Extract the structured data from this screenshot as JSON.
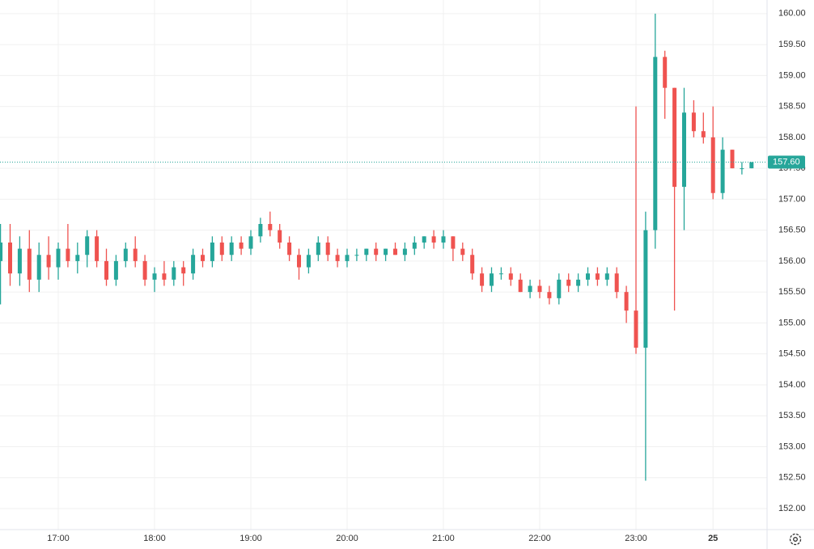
{
  "chart_data": {
    "type": "candlestick",
    "categories": [
      null,
      null,
      null,
      null,
      null,
      null,
      "17:00",
      null,
      null,
      null,
      null,
      null,
      null,
      null,
      null,
      null,
      "18:00",
      null,
      null,
      null,
      null,
      null,
      null,
      null,
      null,
      null,
      "19:00",
      null,
      null,
      null,
      null,
      null,
      null,
      null,
      null,
      null,
      "20:00",
      null,
      null,
      null,
      null,
      null,
      null,
      null,
      null,
      null,
      "21:00",
      null,
      null,
      null,
      null,
      null,
      null,
      null,
      null,
      null,
      "22:00",
      null,
      null,
      null,
      null,
      null,
      null,
      null,
      null,
      null,
      "23:00",
      null,
      null,
      null,
      null,
      null,
      null,
      null,
      "25",
      null,
      null,
      null,
      null
    ],
    "open": [
      156.0,
      156.3,
      155.8,
      156.2,
      155.7,
      156.1,
      155.9,
      156.2,
      156.0,
      156.1,
      156.4,
      156.0,
      155.7,
      156.0,
      156.2,
      156.0,
      155.7,
      155.8,
      155.7,
      155.9,
      155.8,
      156.1,
      156.0,
      156.3,
      156.1,
      156.3,
      156.2,
      156.4,
      156.6,
      156.5,
      156.3,
      156.1,
      155.9,
      156.1,
      156.3,
      156.1,
      156.0,
      156.1,
      156.1,
      156.2,
      156.1,
      156.2,
      156.1,
      156.2,
      156.3,
      156.4,
      156.3,
      156.4,
      156.2,
      156.1,
      155.8,
      155.6,
      155.8,
      155.8,
      155.7,
      155.5,
      155.6,
      155.5,
      155.4,
      155.7,
      155.6,
      155.7,
      155.8,
      155.7,
      155.8,
      155.5,
      155.2,
      154.6,
      156.5,
      159.3,
      158.8,
      157.2,
      158.4,
      158.1,
      158.0,
      157.1,
      157.8,
      157.5,
      157.5
    ],
    "high": [
      156.6,
      156.6,
      156.4,
      156.5,
      156.3,
      156.4,
      156.3,
      156.6,
      156.3,
      156.5,
      156.5,
      156.2,
      156.1,
      156.3,
      156.4,
      156.1,
      155.9,
      156.0,
      156.0,
      156.0,
      156.2,
      156.2,
      156.4,
      156.4,
      156.4,
      156.4,
      156.5,
      156.7,
      156.8,
      156.6,
      156.4,
      156.2,
      156.2,
      156.4,
      156.4,
      156.2,
      156.2,
      156.2,
      156.2,
      156.3,
      156.2,
      156.3,
      156.3,
      156.4,
      156.4,
      156.5,
      156.5,
      156.4,
      156.3,
      156.2,
      155.9,
      155.9,
      155.9,
      155.9,
      155.8,
      155.7,
      155.7,
      155.6,
      155.8,
      155.8,
      155.8,
      155.9,
      155.9,
      155.9,
      155.9,
      155.6,
      158.5,
      156.8,
      160.0,
      159.4,
      158.8,
      158.8,
      158.6,
      158.4,
      158.5,
      158.0,
      157.8,
      157.6,
      157.6
    ],
    "low": [
      155.3,
      155.6,
      155.6,
      155.5,
      155.5,
      155.7,
      155.7,
      155.9,
      155.8,
      155.9,
      155.9,
      155.6,
      155.6,
      155.9,
      155.9,
      155.6,
      155.5,
      155.6,
      155.6,
      155.6,
      155.7,
      155.9,
      155.9,
      156.0,
      156.0,
      156.1,
      156.1,
      156.3,
      156.4,
      156.2,
      156.0,
      155.7,
      155.8,
      156.0,
      156.0,
      155.9,
      155.9,
      156.0,
      156.0,
      156.0,
      156.0,
      156.1,
      156.0,
      156.1,
      156.2,
      156.2,
      156.2,
      156.0,
      156.0,
      155.7,
      155.5,
      155.5,
      155.7,
      155.6,
      155.5,
      155.4,
      155.4,
      155.3,
      155.3,
      155.5,
      155.5,
      155.6,
      155.6,
      155.6,
      155.4,
      155.0,
      154.5,
      152.45,
      156.2,
      158.3,
      155.2,
      156.5,
      158.0,
      157.9,
      157.0,
      157.0,
      157.5,
      157.4,
      157.5
    ],
    "close": [
      156.3,
      155.8,
      156.2,
      155.7,
      156.1,
      155.9,
      156.2,
      156.0,
      156.1,
      156.4,
      156.0,
      155.7,
      156.0,
      156.2,
      156.0,
      155.7,
      155.8,
      155.7,
      155.9,
      155.8,
      156.1,
      156.0,
      156.3,
      156.1,
      156.3,
      156.2,
      156.4,
      156.6,
      156.5,
      156.3,
      156.1,
      155.9,
      156.1,
      156.3,
      156.1,
      156.0,
      156.1,
      156.1,
      156.2,
      156.1,
      156.2,
      156.1,
      156.2,
      156.3,
      156.4,
      156.3,
      156.4,
      156.2,
      156.1,
      155.8,
      155.6,
      155.8,
      155.8,
      155.7,
      155.5,
      155.6,
      155.5,
      155.4,
      155.7,
      155.6,
      155.7,
      155.8,
      155.7,
      155.8,
      155.5,
      155.2,
      154.6,
      156.5,
      159.3,
      158.8,
      157.2,
      158.4,
      158.1,
      158.0,
      157.1,
      157.8,
      157.5,
      157.5,
      157.6
    ],
    "up_color": "#26a69a",
    "down_color": "#ef5350",
    "ylim": [
      151.66,
      160.22
    ],
    "yticks": [
      {
        "value": 152,
        "label": "152.00"
      },
      {
        "value": 152.5,
        "label": "152.50"
      },
      {
        "value": 153,
        "label": "153.00"
      },
      {
        "value": 153.5,
        "label": "153.50"
      },
      {
        "value": 154,
        "label": "154.00"
      },
      {
        "value": 154.5,
        "label": "154.50"
      },
      {
        "value": 155,
        "label": "155.00"
      },
      {
        "value": 155.5,
        "label": "155.50"
      },
      {
        "value": 156,
        "label": "156.00"
      },
      {
        "value": 156.5,
        "label": "156.50"
      },
      {
        "value": 157,
        "label": "157.00"
      },
      {
        "value": 157.5,
        "label": "157.50"
      },
      {
        "value": 158,
        "label": "158.00"
      },
      {
        "value": 158.5,
        "label": "158.50"
      },
      {
        "value": 159,
        "label": "159.00"
      },
      {
        "value": 159.5,
        "label": "159.50"
      },
      {
        "value": 160,
        "label": "160.00"
      }
    ],
    "price_line": {
      "value": 157.6,
      "label": "157.60"
    },
    "grid": true
  }
}
